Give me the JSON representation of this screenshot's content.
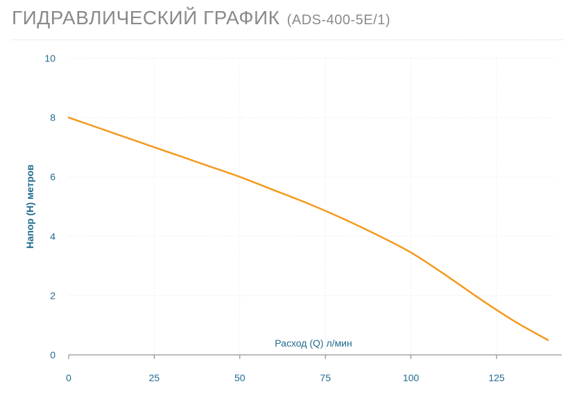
{
  "page": {
    "title_main": "ГИДРАВЛИЧЕСКИЙ ГРАФИК",
    "title_model": "(ADS-400-5E/1)"
  },
  "chart_data": {
    "type": "line",
    "title": "ГИДРАВЛИЧЕСКИЙ ГРАФИК (ADS-400-5E/1)",
    "xlabel": "Расход (Q) л/мин",
    "ylabel": "Напор (H) метров",
    "xlim": [
      0,
      142
    ],
    "ylim": [
      0,
      10
    ],
    "x_ticks": [
      0,
      25,
      50,
      75,
      100,
      125
    ],
    "y_ticks": [
      0,
      2,
      4,
      6,
      8,
      10
    ],
    "grid": true,
    "line_color": "#f3991c",
    "series": [
      {
        "x": [
          0,
          10,
          20,
          30,
          40,
          50,
          60,
          70,
          80,
          90,
          100,
          110,
          120,
          130,
          140
        ],
        "y": [
          8.0,
          7.6,
          7.2,
          6.8,
          6.4,
          6.0,
          5.55,
          5.1,
          4.6,
          4.05,
          3.45,
          2.7,
          1.9,
          1.15,
          0.5
        ]
      }
    ]
  }
}
